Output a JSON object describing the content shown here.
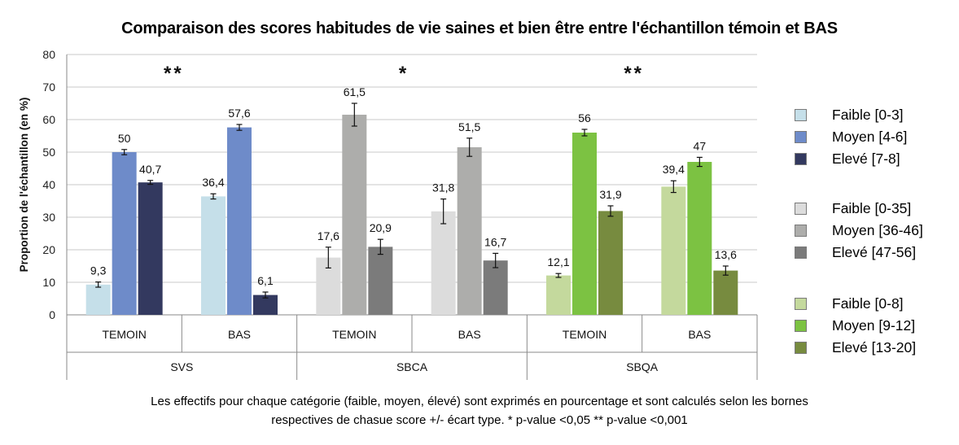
{
  "chart_data": {
    "type": "bar",
    "title": "Comparaison des scores habitudes de vie saines et bien être entre l'échantillon témoin et BAS",
    "ylabel": "Proportion de l'échantillon (en %)",
    "xlabel": "",
    "ylim": [
      0,
      80
    ],
    "yticks": [
      "0",
      "10",
      "20",
      "30",
      "40",
      "50",
      "60",
      "70",
      "80"
    ],
    "grid": true,
    "legend_position": "right",
    "groups": [
      {
        "name": "SVS",
        "significance": "**",
        "categories": [
          {
            "name": "TEMOIN",
            "values": [
              9.3,
              50,
              40.7
            ],
            "labels": [
              "9,3",
              "50",
              "40,7"
            ],
            "errors": [
              0.8,
              0.8,
              0.6
            ]
          },
          {
            "name": "BAS",
            "values": [
              36.4,
              57.6,
              6.1
            ],
            "labels": [
              "36,4",
              "57,6",
              "6,1"
            ],
            "errors": [
              0.8,
              0.9,
              0.9
            ]
          }
        ],
        "series": [
          {
            "name": "Faible [0-3]",
            "color": "#c5dfe9"
          },
          {
            "name": "Moyen [4-6]",
            "color": "#6e8bc9"
          },
          {
            "name": "Elevé [7-8]",
            "color": "#33395f"
          }
        ]
      },
      {
        "name": "SBCA",
        "significance": "*",
        "categories": [
          {
            "name": "TEMOIN",
            "values": [
              17.6,
              61.5,
              20.9
            ],
            "labels": [
              "17,6",
              "61,5",
              "20,9"
            ],
            "errors": [
              3.2,
              3.5,
              2.3
            ]
          },
          {
            "name": "BAS",
            "values": [
              31.8,
              51.5,
              16.7
            ],
            "labels": [
              "31,8",
              "51,5",
              "16,7"
            ],
            "errors": [
              3.8,
              2.8,
              2.2
            ]
          }
        ],
        "series": [
          {
            "name": "Faible [0-35]",
            "color": "#dcdcdc"
          },
          {
            "name": "Moyen [36-46]",
            "color": "#adadab"
          },
          {
            "name": "Elevé [47-56]",
            "color": "#7b7b7b"
          }
        ]
      },
      {
        "name": "SBQA",
        "significance": "**",
        "categories": [
          {
            "name": "TEMOIN",
            "values": [
              12.1,
              56,
              31.9
            ],
            "labels": [
              "12,1",
              "56",
              "31,9"
            ],
            "errors": [
              0.6,
              1.0,
              1.6
            ]
          },
          {
            "name": "BAS",
            "values": [
              39.4,
              47,
              13.6
            ],
            "labels": [
              "39,4",
              "47",
              "13,6"
            ],
            "errors": [
              1.8,
              1.4,
              1.4
            ]
          }
        ],
        "series": [
          {
            "name": "Faible [0-8]",
            "color": "#c4d99d"
          },
          {
            "name": "Moyen [9-12]",
            "color": "#7cc242"
          },
          {
            "name": "Elevé [13-20]",
            "color": "#778b3f"
          }
        ]
      }
    ]
  },
  "caption": {
    "line1": "Les effectifs pour chaque catégorie (faible, moyen, élevé) sont exprimés en pourcentage et sont calculés selon les bornes",
    "line2": "respectives de chasue score +/- écart type. * p-value <0,05 ** p-value <0,001"
  }
}
